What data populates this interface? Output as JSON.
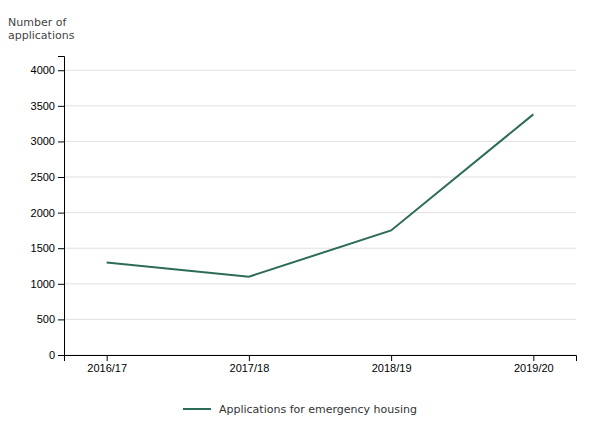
{
  "chart_data": {
    "type": "line",
    "ylabel": "Number of\napplications",
    "categories": [
      "2016/17",
      "2017/18",
      "2018/19",
      "2019/20"
    ],
    "series": [
      {
        "name": "Applications for emergency housing",
        "color": "#2d6b5a",
        "values": [
          1300,
          1100,
          1750,
          3380
        ]
      }
    ],
    "ylim": [
      0,
      4200
    ],
    "yticks": [
      0,
      500,
      1000,
      1500,
      2000,
      2500,
      3000,
      3500,
      4000
    ],
    "grid": true,
    "legend": "bottom"
  }
}
